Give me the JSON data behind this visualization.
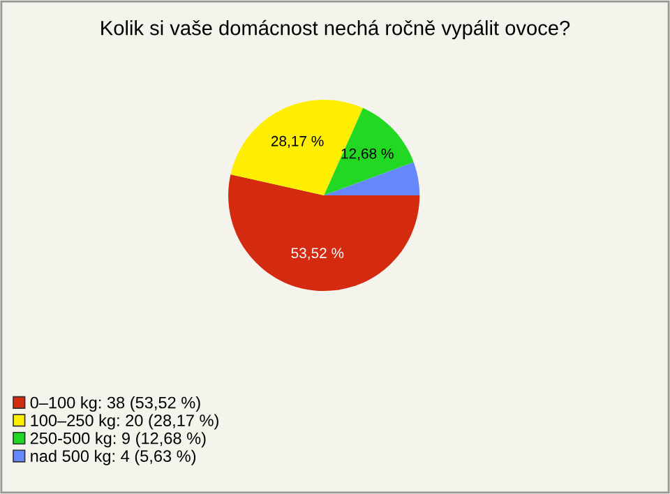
{
  "chart_data": {
    "type": "pie",
    "title": "Kolik si vaše domácnost nechá ročně vypálit ovoce?",
    "categories": [
      "0–100 kg: 38 (53,52 %)",
      "100–250 kg: 20 (28,17 %)",
      "250-500 kg: 9 (12,68 %)",
      "nad 500 kg: 4 (5,63 %)"
    ],
    "values": [
      53.52,
      28.17,
      12.68,
      5.63
    ],
    "value_labels": [
      "53,52 %",
      "28,17 %",
      "12,68 %",
      null
    ],
    "colors": [
      "#d42a10",
      "#ffee00",
      "#22d822",
      "#6688ff"
    ],
    "legend": "bottom left"
  }
}
